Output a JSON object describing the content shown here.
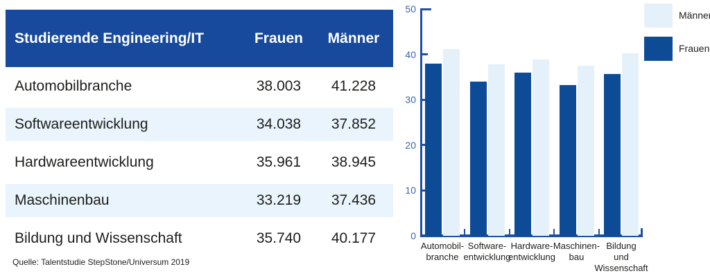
{
  "table": {
    "title": "Studierende Engineering/IT",
    "columns": [
      "Frauen",
      "Männer"
    ],
    "rows": [
      {
        "label": "Automobilbranche",
        "frauen": "38.003",
        "maenner": "41.228"
      },
      {
        "label": "Softwareentwicklung",
        "frauen": "34.038",
        "maenner": "37.852"
      },
      {
        "label": "Hardwareentwicklung",
        "frauen": "35.961",
        "maenner": "38.945"
      },
      {
        "label": "Maschinenbau",
        "frauen": "33.219",
        "maenner": "37.436"
      },
      {
        "label": "Bildung und Wissenschaft",
        "frauen": "35.740",
        "maenner": "40.177"
      }
    ],
    "source": "Quelle: Talentstudie StepStone/Universum 2019"
  },
  "chart_data": {
    "type": "bar",
    "title": "",
    "categories": [
      "Automobilbranche",
      "Softwareentwicklung",
      "Hardwareentwicklung",
      "Maschinenbau",
      "Bildung und Wissenschaft"
    ],
    "category_labels": [
      [
        "Automobil-",
        "branche"
      ],
      [
        "Software-",
        "entwicklung"
      ],
      [
        "Hardware-",
        "entwicklung"
      ],
      [
        "Maschinen-",
        "bau"
      ],
      [
        "Bildung",
        "und",
        "Wissenschaft"
      ]
    ],
    "series": [
      {
        "name": "Frauen",
        "color": "#0e4b97",
        "values": [
          38.003,
          34.038,
          35.961,
          33.219,
          35.74
        ]
      },
      {
        "name": "Männer",
        "color": "#e5f1fa",
        "values": [
          41.228,
          37.852,
          38.945,
          37.436,
          40.177
        ]
      }
    ],
    "ylim": [
      0,
      50
    ],
    "yticks": [
      0,
      10,
      20,
      30,
      40,
      50
    ],
    "legend": [
      {
        "label": "Männer",
        "color": "#e5f1fa"
      },
      {
        "label": "Frauen",
        "color": "#0e4b97"
      }
    ],
    "legend_position": "top-right",
    "grid": false
  },
  "colors": {
    "header_bg": "#17499c",
    "header_text": "#ffffff",
    "row_alt_bg": "#e9f4fc",
    "bar_dark": "#0e4b97",
    "bar_light": "#e5f1fa",
    "axis": "#1e509f",
    "ytick_text": "#3a64ad",
    "body_text": "#1d1d1b"
  }
}
